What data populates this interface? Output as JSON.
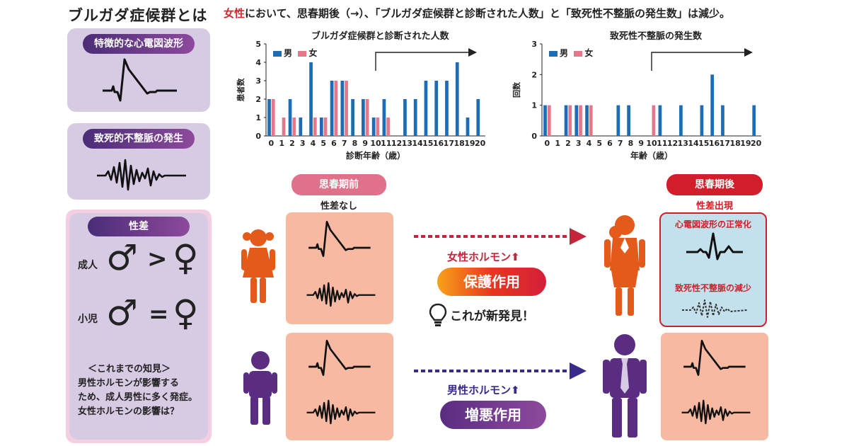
{
  "title": "ブルガダ症候群とは",
  "headline": {
    "red_part": "女性",
    "rest": "において、思春期後（→）、「ブルガダ症候群と診断された人数」と「致死性不整脈の発生数」は減少。"
  },
  "left_panels": {
    "ecg_title": "特徴的な心電図波形",
    "arrhythmia_title": "致死的不整脈の発生",
    "sex_diff": {
      "title": "性差",
      "adult_label": "成人",
      "child_label": "小児",
      "male_symbol": "♂",
      "female_symbol": "♀",
      "adult_relation": ">",
      "child_relation": "=",
      "knowledge_lines": [
        "＜これまでの知見＞",
        "男性ホルモンが影響する",
        "ため、成人男性に多く発症。",
        "女性ホルモンの影響は？"
      ]
    }
  },
  "center": {
    "before_label": "思春期前",
    "no_diff_label": "性差なし",
    "after_label": "思春期後",
    "diff_appear_label": "性差出現",
    "female_hormone": "女性ホルモン⬆",
    "protective": "保護作用",
    "discovery": "これが新発見！",
    "male_hormone": "男性ホルモン⬆",
    "aggravating": "増悪作用",
    "normalize_label": "心電図波形の正常化",
    "reduce_label": "致死性不整脈の減少"
  },
  "colors": {
    "male": "#1c6db5",
    "female": "#e6768a",
    "purple": "#5a2d82",
    "red": "#d9262c",
    "salmon": "#f7b9a2",
    "lavender": "#d7cbe4",
    "orange": "#e35a1a"
  },
  "chart_data": [
    {
      "type": "bar",
      "title": "ブルガダ症候群と診断された人数",
      "ylabel": "患者数",
      "xlabel": "診断年齢（歳）",
      "ylim": [
        0,
        5
      ],
      "yticks": [
        "0",
        "1",
        "2",
        "3",
        "4",
        "5"
      ],
      "categories": [
        "0",
        "1",
        "2",
        "3",
        "4",
        "5",
        "6",
        "7",
        "8",
        "9",
        "10",
        "11",
        "12",
        "13",
        "14",
        "15",
        "16",
        "17",
        "18",
        "19",
        "20"
      ],
      "legend": [
        "男",
        "女"
      ],
      "series": [
        {
          "name": "男",
          "values": [
            2,
            0,
            2,
            1,
            4,
            1,
            3,
            3,
            2,
            2,
            1,
            2,
            0,
            2,
            2,
            3,
            3,
            3,
            4,
            1,
            2
          ]
        },
        {
          "name": "女",
          "values": [
            2,
            1,
            1,
            0,
            1,
            1,
            3,
            3,
            0,
            2,
            1,
            1,
            0,
            0,
            0,
            0,
            0,
            0,
            0,
            0,
            0
          ]
        }
      ],
      "arrow_from": "10"
    },
    {
      "type": "bar",
      "title": "致死性不整脈の発生数",
      "ylabel": "回数",
      "xlabel": "年齢（歳）",
      "ylim": [
        0,
        3
      ],
      "yticks": [
        "0",
        "1",
        "2",
        "3"
      ],
      "categories": [
        "0",
        "1",
        "2",
        "3",
        "4",
        "5",
        "6",
        "7",
        "8",
        "9",
        "10",
        "11",
        "12",
        "13",
        "14",
        "15",
        "16",
        "17",
        "18",
        "19",
        "20"
      ],
      "legend": [
        "男",
        "女"
      ],
      "series": [
        {
          "name": "男",
          "values": [
            1,
            0,
            1,
            1,
            1,
            0,
            0,
            1,
            1,
            0,
            0,
            1,
            0,
            1,
            0,
            1,
            2,
            1,
            0,
            0,
            1
          ]
        },
        {
          "name": "女",
          "values": [
            1,
            0,
            1,
            1,
            1,
            0,
            0,
            0,
            0,
            0,
            1,
            0,
            0,
            0,
            0,
            0,
            0,
            0,
            0,
            0,
            0
          ]
        }
      ],
      "arrow_from": "10"
    }
  ]
}
